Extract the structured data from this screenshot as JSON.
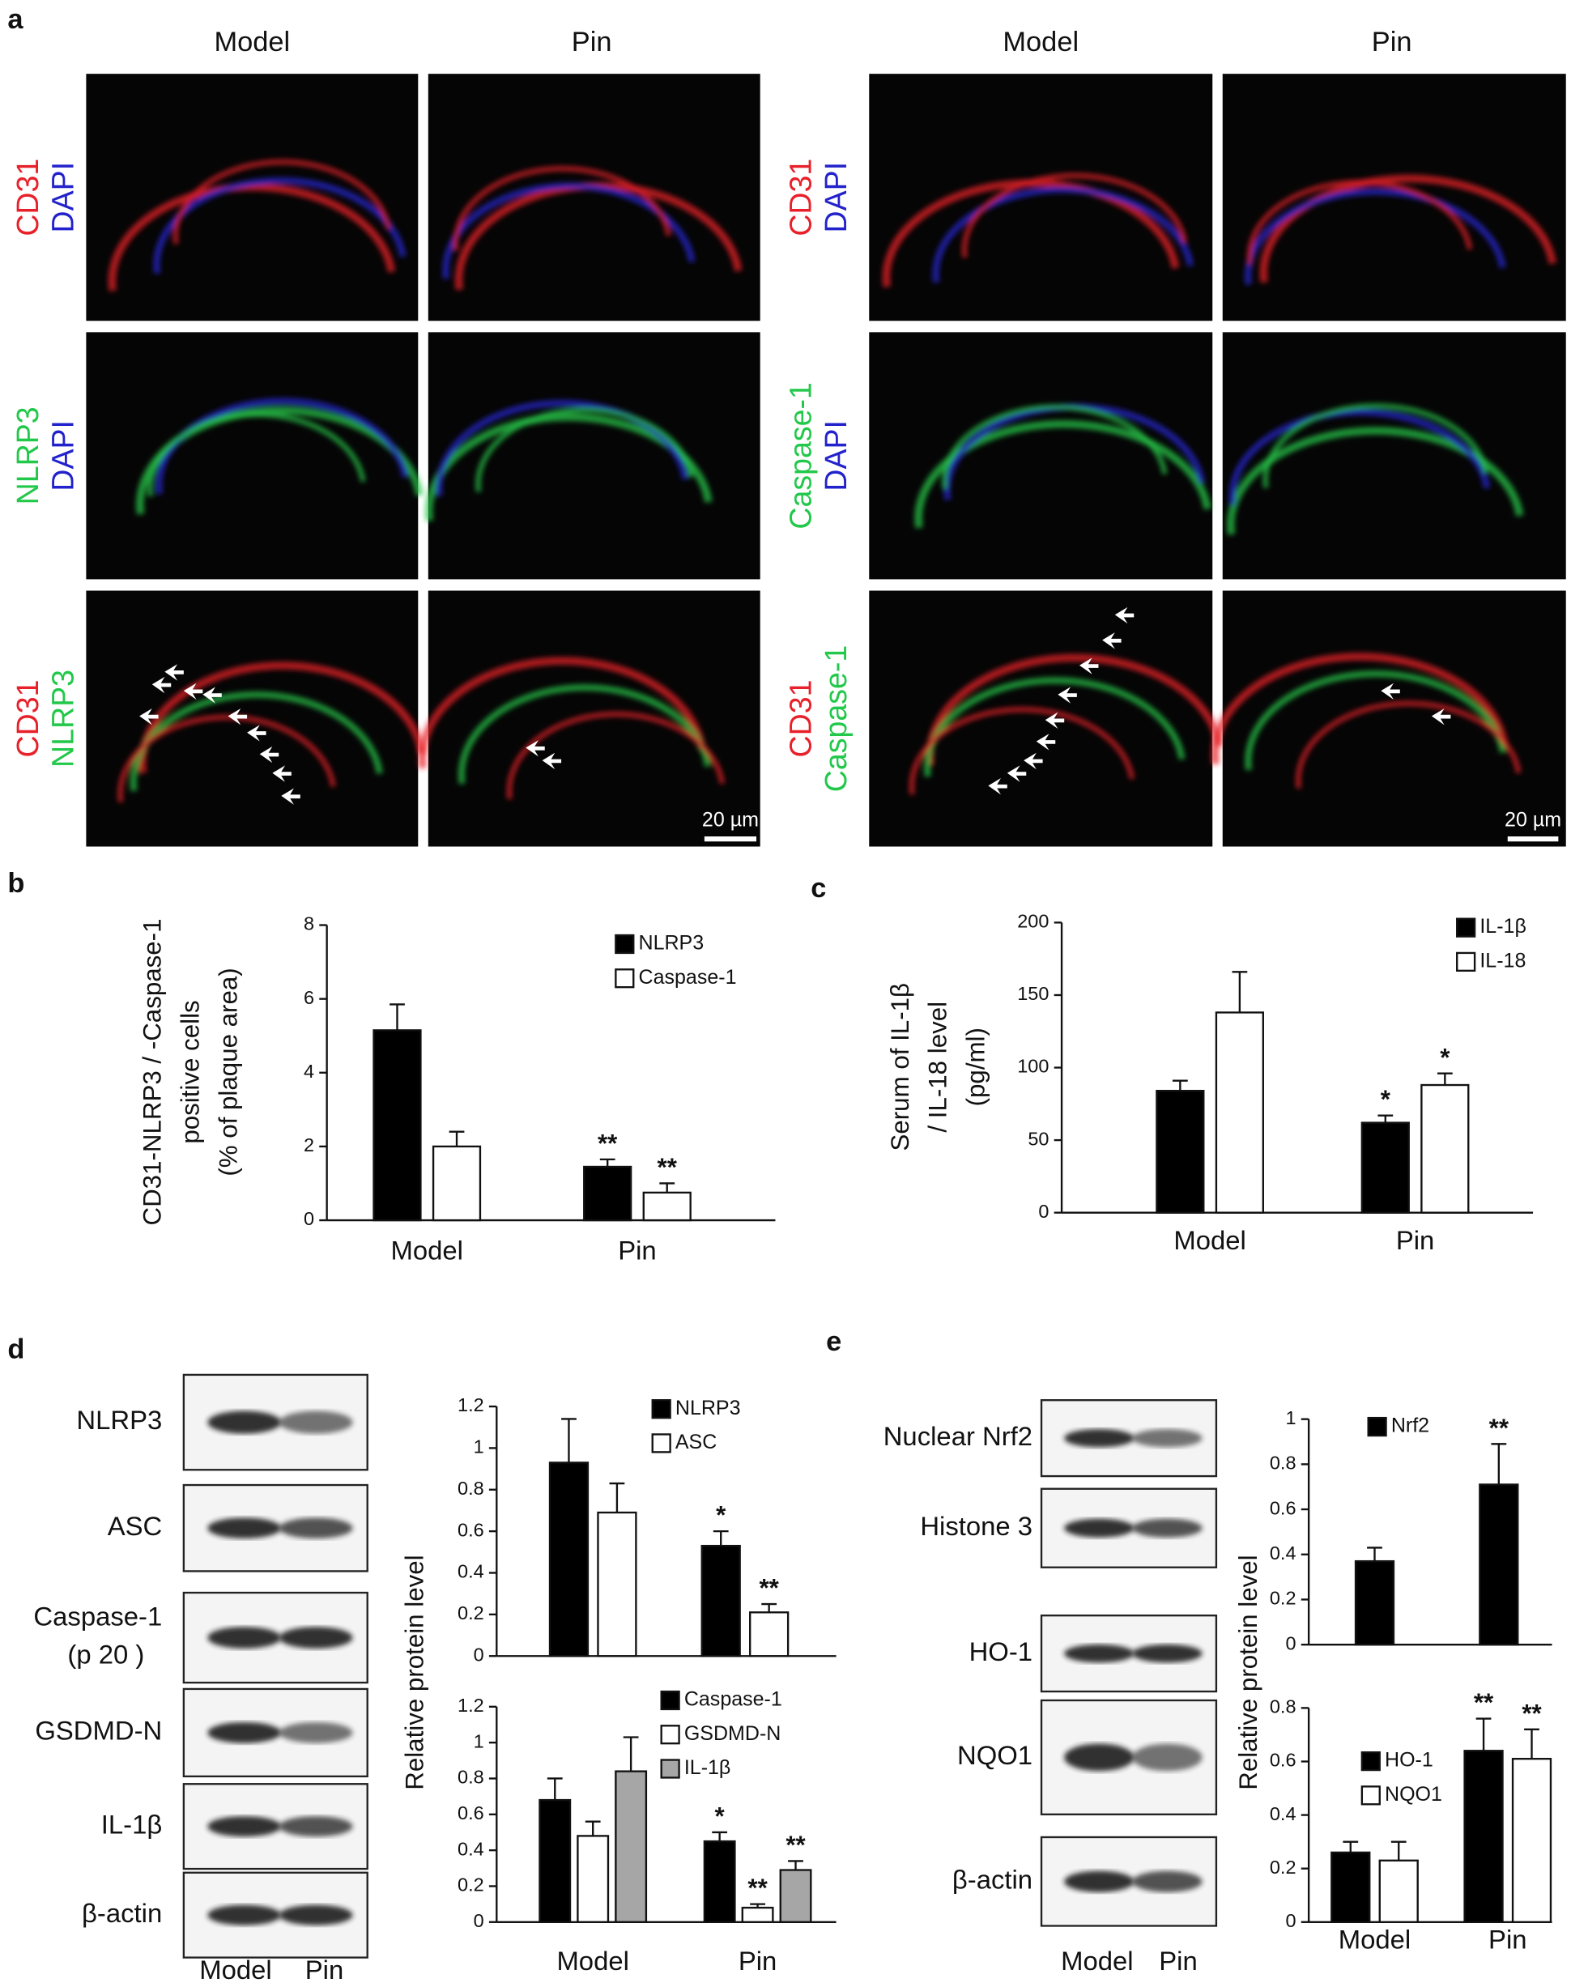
{
  "panel_labels": [
    "a",
    "b",
    "c",
    "d",
    "e"
  ],
  "panel_a": {
    "columns": [
      "Model",
      "Pin",
      "Model",
      "Pin"
    ],
    "rows_left": [
      [
        {
          "text": "CD31",
          "color": "#e8202a"
        },
        {
          "text": "DAPI",
          "color": "#2222cc"
        }
      ],
      [
        {
          "text": "NLRP3",
          "color": "#22c84a"
        },
        {
          "text": "DAPI",
          "color": "#2222cc"
        }
      ],
      [
        {
          "text": "CD31",
          "color": "#e8202a"
        },
        {
          "text": "NLRP3",
          "color": "#22c84a"
        }
      ]
    ],
    "rows_right": [
      [
        {
          "text": "CD31",
          "color": "#e8202a"
        },
        {
          "text": "DAPI",
          "color": "#2222cc"
        }
      ],
      [
        {
          "text": "Caspase-1",
          "color": "#22c84a"
        },
        {
          "text": "DAPI",
          "color": "#2222cc"
        }
      ],
      [
        {
          "text": "CD31",
          "color": "#e8202a"
        },
        {
          "text": "Caspase-1",
          "color": "#22c84a"
        }
      ]
    ],
    "scale_bars": [
      "20 µm",
      "20 µm"
    ]
  },
  "blots_d": {
    "labels": [
      [
        "NLRP3"
      ],
      [
        "ASC"
      ],
      [
        "Caspase-1",
        "(p 20 )"
      ],
      [
        "GSDMD-N"
      ],
      [
        "IL-1β"
      ],
      [
        "β-actin"
      ]
    ],
    "lanes": [
      "Model",
      "Pin"
    ]
  },
  "blots_e": {
    "labels": [
      [
        "Nuclear Nrf2"
      ],
      [
        "Histone 3"
      ],
      [
        "HO-1"
      ],
      [
        "NQO1"
      ],
      [
        "β-actin"
      ]
    ],
    "lanes": [
      "Model",
      "Pin"
    ]
  },
  "chart_data": [
    {
      "type": "bar",
      "ylabel": [
        "CD31-NLRP3 / -Caspase-1",
        "positive cells",
        "(% of plaque area)"
      ],
      "categories": [
        "Model",
        "Pin"
      ],
      "ylim": [
        0,
        8
      ],
      "yticks": [
        0,
        2,
        4,
        6,
        8
      ],
      "series": [
        {
          "name": "NLRP3",
          "color": "#000000",
          "values": [
            5.15,
            1.45
          ],
          "errors": [
            0.7,
            0.2
          ],
          "annotations": [
            null,
            "**"
          ]
        },
        {
          "name": "Caspase-1",
          "color": "#ffffff",
          "values": [
            2.0,
            0.75
          ],
          "errors": [
            0.4,
            0.25
          ],
          "annotations": [
            null,
            "**"
          ]
        }
      ]
    },
    {
      "type": "bar",
      "ylabel": [
        "Serum of IL-1β",
        "/ IL-18 level",
        "(pg/ml)"
      ],
      "categories": [
        "Model",
        "Pin"
      ],
      "ylim": [
        0,
        200
      ],
      "yticks": [
        0,
        50,
        100,
        150,
        200
      ],
      "series": [
        {
          "name": "IL-1β",
          "color": "#000000",
          "values": [
            84,
            62
          ],
          "errors": [
            7,
            5
          ],
          "annotations": [
            null,
            "*"
          ]
        },
        {
          "name": "IL-18",
          "color": "#ffffff",
          "values": [
            138,
            88
          ],
          "errors": [
            28,
            8
          ],
          "annotations": [
            null,
            "*"
          ]
        }
      ]
    },
    {
      "type": "bar",
      "ylim": [
        0,
        1.2
      ],
      "yticks": [
        0,
        0.2,
        0.4,
        0.6,
        0.8,
        1,
        1.2
      ],
      "series": [
        {
          "name": "NLRP3",
          "color": "#000000",
          "values": [
            0.93,
            0.53
          ],
          "errors": [
            0.21,
            0.07
          ],
          "annotations": [
            null,
            "*"
          ]
        },
        {
          "name": "ASC",
          "color": "#ffffff",
          "values": [
            0.69,
            0.21
          ],
          "errors": [
            0.14,
            0.04
          ],
          "annotations": [
            null,
            "**"
          ]
        }
      ]
    },
    {
      "type": "bar",
      "ylabel": [
        "Relative protein level"
      ],
      "categories": [
        "Model",
        "Pin"
      ],
      "ylim": [
        0,
        1.2
      ],
      "yticks": [
        0,
        0.2,
        0.4,
        0.6,
        0.8,
        1,
        1.2
      ],
      "series": [
        {
          "name": "Caspase-1",
          "color": "#000000",
          "values": [
            0.68,
            0.45
          ],
          "errors": [
            0.12,
            0.05
          ],
          "annotations": [
            null,
            "*"
          ]
        },
        {
          "name": "GSDMD-N",
          "color": "#ffffff",
          "values": [
            0.48,
            0.08
          ],
          "errors": [
            0.08,
            0.02
          ],
          "annotations": [
            null,
            "**"
          ]
        },
        {
          "name": "IL-1β",
          "color": "#a6a6a6",
          "values": [
            0.84,
            0.29
          ],
          "errors": [
            0.19,
            0.05
          ],
          "annotations": [
            null,
            "**"
          ]
        }
      ]
    },
    {
      "type": "bar",
      "ylim": [
        0,
        1
      ],
      "yticks": [
        0,
        0.2,
        0.4,
        0.6,
        0.8,
        1
      ],
      "series": [
        {
          "name": "Nrf2",
          "color": "#000000",
          "values": [
            0.37,
            0.71
          ],
          "errors": [
            0.06,
            0.18
          ],
          "annotations": [
            null,
            "**"
          ]
        }
      ]
    },
    {
      "type": "bar",
      "ylabel": [
        "Relative protein level"
      ],
      "categories": [
        "Model",
        "Pin"
      ],
      "ylim": [
        0,
        0.8
      ],
      "yticks": [
        0,
        0.2,
        0.4,
        0.6,
        0.8
      ],
      "series": [
        {
          "name": "HO-1",
          "color": "#000000",
          "values": [
            0.26,
            0.64
          ],
          "errors": [
            0.04,
            0.12
          ],
          "annotations": [
            null,
            "**"
          ]
        },
        {
          "name": "NQO1",
          "color": "#ffffff",
          "values": [
            0.23,
            0.61
          ],
          "errors": [
            0.07,
            0.11
          ],
          "annotations": [
            null,
            "**"
          ]
        }
      ]
    }
  ]
}
